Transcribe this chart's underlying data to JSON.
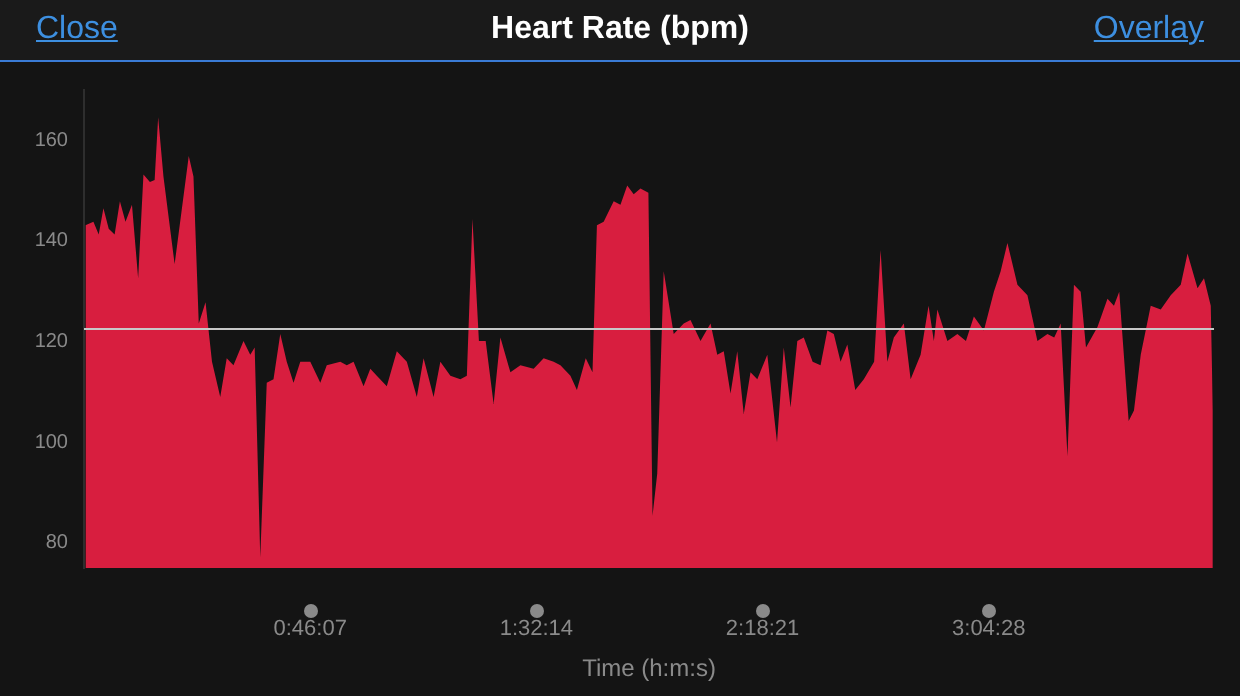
{
  "chart_data": {
    "type": "area",
    "title": "Heart Rate (bpm)",
    "xlabel": "Time (h:m:s)",
    "annotations": [
      "Close",
      "Overlay"
    ],
    "color": "#d81e3f",
    "xlim": [
      0,
      3.84
    ],
    "ylim": [
      75,
      170
    ],
    "yticks": [
      80,
      100,
      120,
      140,
      160
    ],
    "xticks": [
      {
        "value": 0.76861,
        "label": "0:46:07"
      },
      {
        "value": 1.53722,
        "label": "1:32:14"
      },
      {
        "value": 2.30583,
        "label": "2:18:21"
      },
      {
        "value": 3.07444,
        "label": "3:04:28"
      }
    ],
    "grid": false,
    "legend": false,
    "ref_lines": [
      {
        "axis": "y",
        "value": 122.5,
        "color": "#c8c8c8"
      }
    ],
    "x": [
      0.005,
      0.032,
      0.05,
      0.066,
      0.084,
      0.104,
      0.122,
      0.141,
      0.163,
      0.184,
      0.202,
      0.224,
      0.24,
      0.252,
      0.27,
      0.308,
      0.356,
      0.372,
      0.39,
      0.413,
      0.435,
      0.463,
      0.485,
      0.508,
      0.542,
      0.565,
      0.58,
      0.599,
      0.621,
      0.644,
      0.667,
      0.689,
      0.712,
      0.735,
      0.769,
      0.803,
      0.825,
      0.871,
      0.893,
      0.916,
      0.95,
      0.973,
      0.995,
      1.029,
      1.063,
      1.097,
      1.131,
      1.154,
      1.188,
      1.211,
      1.245,
      1.279,
      1.301,
      1.32,
      1.342,
      1.365,
      1.392,
      1.415,
      1.449,
      1.483,
      1.528,
      1.562,
      1.596,
      1.619,
      1.653,
      1.675,
      1.705,
      1.728,
      1.743,
      1.766,
      1.8,
      1.823,
      1.846,
      1.868,
      1.891,
      1.918,
      1.932,
      1.948,
      1.97,
      2.004,
      2.038,
      2.061,
      2.095,
      2.129,
      2.152,
      2.174,
      2.197,
      2.22,
      2.242,
      2.265,
      2.288,
      2.322,
      2.355,
      2.378,
      2.401,
      2.424,
      2.446,
      2.476,
      2.503,
      2.526,
      2.548,
      2.571,
      2.594,
      2.621,
      2.65,
      2.685,
      2.707,
      2.73,
      2.752,
      2.786,
      2.809,
      2.843,
      2.87,
      2.888,
      2.9,
      2.934,
      2.968,
      2.997,
      3.024,
      3.058,
      3.092,
      3.115,
      3.138,
      3.172,
      3.206,
      3.24,
      3.274,
      3.297,
      3.319,
      3.342,
      3.364,
      3.387,
      3.405,
      3.444,
      3.478,
      3.5,
      3.518,
      3.55,
      3.568,
      3.591,
      3.625,
      3.659,
      3.693,
      3.727,
      3.75,
      3.784,
      3.806,
      3.829,
      3.836
    ],
    "values": [
      143.1,
      143.8,
      141.3,
      146.5,
      142.4,
      141.3,
      147.9,
      143.8,
      147.2,
      132.6,
      153.2,
      151.7,
      152.1,
      164.6,
      152.8,
      135.4,
      156.9,
      152.8,
      123.6,
      127.8,
      116,
      109,
      116.7,
      115.3,
      120.1,
      117.4,
      118.8,
      77.1,
      111.8,
      112.5,
      121.5,
      116,
      111.8,
      116,
      116,
      111.8,
      115.3,
      116,
      115.3,
      116,
      111.1,
      114.6,
      113.2,
      111.1,
      118.1,
      116,
      109,
      116.7,
      109,
      116,
      113.2,
      112.5,
      113.2,
      144.4,
      120.1,
      120.1,
      107.6,
      120.8,
      113.9,
      115.3,
      114.6,
      116.7,
      116,
      115.3,
      113.2,
      110.4,
      116.7,
      113.9,
      143.1,
      143.8,
      147.9,
      147.2,
      151,
      149.3,
      150.4,
      149.6,
      85.4,
      93.8,
      134,
      121.5,
      123.6,
      124.3,
      120.1,
      123.6,
      117.4,
      118.1,
      109.7,
      118.1,
      105.6,
      113.9,
      112.5,
      117.4,
      100,
      118.8,
      106.9,
      120.1,
      120.8,
      116,
      115.3,
      122.2,
      121.5,
      116,
      119.4,
      110.4,
      112.5,
      116,
      138.2,
      116,
      120.8,
      123.6,
      112.5,
      117.4,
      127.1,
      120.1,
      126.4,
      120.1,
      121.5,
      120.1,
      125,
      122.2,
      129.9,
      134,
      139.6,
      131.3,
      129.2,
      120.1,
      121.5,
      120.8,
      123.6,
      97.2,
      131.3,
      129.9,
      118.8,
      122.9,
      128.5,
      127.1,
      129.9,
      104.2,
      106.3,
      117.4,
      127.1,
      126.4,
      129.2,
      131.3,
      137.5,
      130.6,
      132.6,
      127.1,
      106.3
    ]
  }
}
